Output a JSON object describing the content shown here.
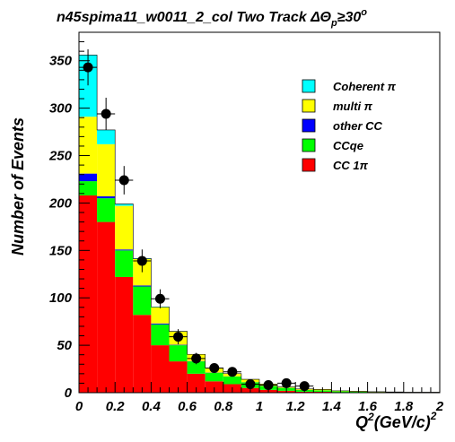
{
  "chart_data": {
    "type": "bar",
    "stacked": true,
    "title": "n45spima11_w0011_2_col Two Track ΔΘ",
    "title_sub": "p",
    "title_tail": "≥30",
    "title_sup": "o",
    "xlabel": "Q",
    "xlabel_sup": "2",
    "xlabel_unit": "(GeV/c)",
    "xlabel_unit_sup": "2",
    "ylabel": "Number of Events",
    "xlim": [
      0,
      2
    ],
    "ylim": [
      0,
      380
    ],
    "xticks": [
      "0",
      "0.2",
      "0.4",
      "0.6",
      "0.8",
      "1",
      "1.2",
      "1.4",
      "1.6",
      "1.8",
      "2"
    ],
    "yticks": [
      "0",
      "50",
      "100",
      "150",
      "200",
      "250",
      "300",
      "350"
    ],
    "bin_edges": [
      0,
      0.1,
      0.2,
      0.3,
      0.4,
      0.5,
      0.6,
      0.7,
      0.8,
      0.9,
      1.0,
      1.1,
      1.2,
      1.3,
      1.4,
      1.5,
      1.6,
      1.7,
      1.8,
      1.9,
      2.0
    ],
    "series": [
      {
        "name": "CC 1π",
        "color": "#ff0000",
        "values": [
          208,
          180,
          122,
          82,
          50,
          33,
          20,
          12,
          9,
          5,
          3,
          2,
          1,
          1,
          0.5,
          0.3,
          0.2,
          0.1,
          0.1,
          0.1
        ]
      },
      {
        "name": "CCqe",
        "color": "#00ff00",
        "values": [
          15,
          25,
          28,
          30,
          22,
          17,
          13,
          9,
          8,
          6,
          4,
          3,
          2,
          1.5,
          1,
          0.7,
          0.5,
          0.4,
          0.2,
          0.2
        ]
      },
      {
        "name": "other CC",
        "color": "#0000ff",
        "values": [
          8,
          2,
          1,
          1,
          1,
          0.5,
          0.3,
          0.2,
          0.2,
          0.1,
          0.1,
          0.1,
          0,
          0,
          0,
          0,
          0,
          0,
          0,
          0
        ]
      },
      {
        "name": "multi π",
        "color": "#ffff00",
        "values": [
          60,
          55,
          46,
          28,
          17,
          14,
          7,
          5,
          3,
          3,
          2,
          1,
          1,
          1,
          0.5,
          0.5,
          0.3,
          0.3,
          0.2,
          0.2
        ]
      },
      {
        "name": "Coherent π",
        "color": "#00ffff",
        "values": [
          65,
          15,
          2,
          0.5,
          0.5,
          0.2,
          0.1,
          0,
          0,
          0,
          0,
          0,
          0,
          0,
          0,
          0,
          0,
          0,
          0,
          0
        ]
      }
    ],
    "data_points": {
      "x": [
        0.05,
        0.15,
        0.25,
        0.35,
        0.45,
        0.55,
        0.65,
        0.75,
        0.85,
        0.95,
        1.05,
        1.15,
        1.25
      ],
      "y": [
        343,
        294,
        224,
        139,
        99,
        59,
        36,
        26,
        22,
        9,
        8,
        10,
        7
      ],
      "err": [
        19,
        17,
        15,
        12,
        10,
        8,
        6,
        5,
        5,
        3,
        3,
        3,
        3
      ]
    },
    "legend": {
      "position": "top-right",
      "entries": [
        "Coherent π",
        "multi π",
        "other CC",
        "CCqe",
        "CC 1π"
      ],
      "colors": [
        "#00ffff",
        "#ffff00",
        "#0000ff",
        "#00ff00",
        "#ff0000"
      ]
    },
    "grid": false
  }
}
